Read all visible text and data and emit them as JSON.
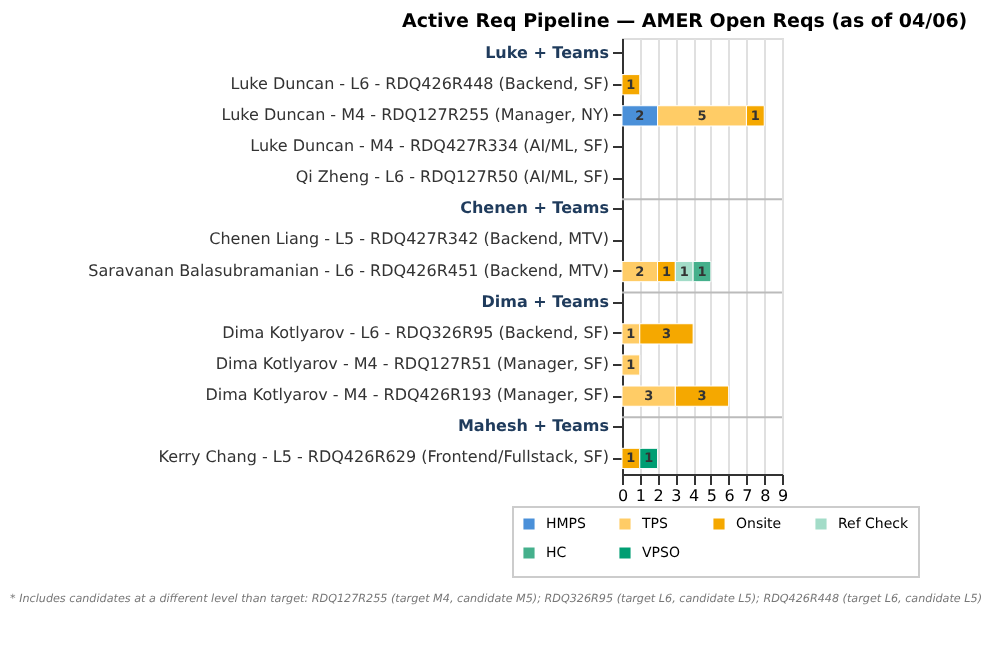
{
  "chart_data": {
    "type": "bar",
    "orientation": "horizontal",
    "stacked": true,
    "title": "Active Req Pipeline — AMER Open Reqs (as of 04/06)",
    "categories": [
      "Luke + Teams",
      "Luke Duncan - L6 - RDQ426R448 (Backend, SF)",
      "Luke Duncan - M4 - RDQ127R255 (Manager, NY)",
      "Luke Duncan - M4 - RDQ427R334 (AI/ML, SF)",
      "Qi Zheng - L6 - RDQ127R50 (AI/ML, SF)",
      "Chenen + Teams",
      "Chenen Liang - L5 - RDQ427R342 (Backend, MTV)",
      "Saravanan Balasubramanian - L6 - RDQ426R451 (Backend, MTV)",
      "Dima + Teams",
      "Dima Kotlyarov - L6 - RDQ326R95 (Backend, SF)",
      "Dima Kotlyarov - M4 - RDQ127R51 (Manager, SF)",
      "Dima Kotlyarov - M4 - RDQ426R193 (Manager, SF)",
      "Mahesh + Teams",
      "Kerry Chang - L5 - RDQ426R629 (Frontend/Fullstack, SF)"
    ],
    "series": [
      {
        "name": "HMPS",
        "color": "#4a90d9",
        "values": [
          null,
          null,
          2,
          null,
          null,
          null,
          null,
          null,
          null,
          null,
          null,
          null,
          null,
          null
        ]
      },
      {
        "name": "TPS",
        "color": "#ffcc66",
        "values": [
          null,
          null,
          5,
          null,
          null,
          null,
          null,
          2,
          null,
          1,
          1,
          3,
          null,
          null
        ]
      },
      {
        "name": "Onsite",
        "color": "#f5a800",
        "values": [
          null,
          1,
          1,
          null,
          null,
          null,
          null,
          1,
          null,
          3,
          null,
          3,
          null,
          1
        ]
      },
      {
        "name": "Ref Check",
        "color": "#a3dcc8",
        "values": [
          null,
          null,
          null,
          null,
          null,
          null,
          null,
          1,
          null,
          null,
          null,
          null,
          null,
          null
        ]
      },
      {
        "name": "HC",
        "color": "#45b08c",
        "values": [
          null,
          null,
          null,
          null,
          null,
          null,
          null,
          1,
          null,
          null,
          null,
          null,
          null,
          null
        ]
      },
      {
        "name": "VPSO",
        "color": "#009e73",
        "values": [
          null,
          null,
          null,
          null,
          null,
          null,
          null,
          null,
          null,
          null,
          null,
          null,
          null,
          1
        ]
      }
    ],
    "xlim": [
      0,
      9
    ],
    "xticks": [
      0,
      1,
      2,
      3,
      4,
      5,
      6,
      7,
      8,
      9
    ],
    "grid": "x",
    "data_labels": true,
    "legend": "bottom",
    "ref_lines": [
      {
        "axis": "y",
        "value": "Chenen + Teams",
        "color": "#bbbbbb"
      },
      {
        "axis": "y",
        "value": "Dima + Teams",
        "color": "#bbbbbb"
      },
      {
        "axis": "y",
        "value": "Mahesh + Teams",
        "color": "#bbbbbb"
      }
    ],
    "annotations": [
      "* Includes candidates at a different level than target: RDQ127R255 (target M4, candidate M5); RDQ326R95 (target L6, candidate L5); RDQ426R448 (target L6, candidate L5)"
    ]
  }
}
